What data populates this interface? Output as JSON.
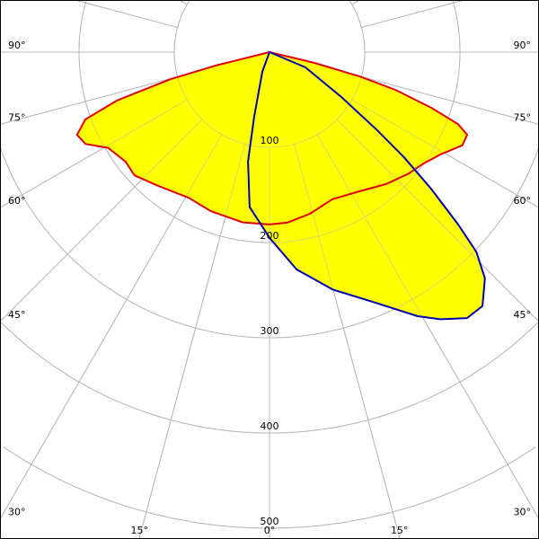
{
  "chart_data": {
    "type": "polar",
    "angle_unit": "deg",
    "angle_labels": [
      {
        "angle": -90,
        "label": "90°"
      },
      {
        "angle": 90,
        "label": "90°"
      },
      {
        "angle": -75,
        "label": "75°"
      },
      {
        "angle": 75,
        "label": "75°"
      },
      {
        "angle": -60,
        "label": "60°"
      },
      {
        "angle": 60,
        "label": "60°"
      },
      {
        "angle": -45,
        "label": "45°"
      },
      {
        "angle": 45,
        "label": "45°"
      },
      {
        "angle": -30,
        "label": "30°"
      },
      {
        "angle": 30,
        "label": "30°"
      },
      {
        "angle": -15,
        "label": "15°"
      },
      {
        "angle": 15,
        "label": "15°"
      },
      {
        "angle": 0,
        "label": "0°"
      }
    ],
    "radial_ticks": [
      100,
      200,
      300,
      400,
      500
    ],
    "grid": true,
    "fill_color": "#ffff00",
    "series": [
      {
        "color": "#e00000",
        "points": [
          [
            -77,
            0
          ],
          [
            -76,
            58
          ],
          [
            -74.7,
            108
          ],
          [
            -72.4,
            168
          ],
          [
            -69.9,
            206
          ],
          [
            -66.7,
            220
          ],
          [
            -63.5,
            216
          ],
          [
            -59.3,
            197
          ],
          [
            -52.7,
            190
          ],
          [
            -47.6,
            192
          ],
          [
            -40,
            183
          ],
          [
            -29,
            175
          ],
          [
            -20.2,
            178
          ],
          [
            -9,
            181
          ],
          [
            0,
            181
          ],
          [
            6,
            180
          ],
          [
            14,
            175
          ],
          [
            23.1,
            168
          ],
          [
            32.8,
            174
          ],
          [
            41.5,
            185
          ],
          [
            48.9,
            194
          ],
          [
            53.7,
            199
          ],
          [
            59,
            209
          ],
          [
            64.2,
            225
          ],
          [
            67.3,
            225
          ],
          [
            69.1,
            212
          ],
          [
            71,
            180
          ],
          [
            73.3,
            138
          ],
          [
            74.9,
            98
          ],
          [
            76.5,
            48.5
          ],
          [
            77,
            0
          ]
        ]
      },
      {
        "color": "#0000b0",
        "points": [
          [
            -20,
            0
          ],
          [
            -20,
            22
          ],
          [
            -13.3,
            70
          ],
          [
            -11.1,
            117
          ],
          [
            -7.3,
            164
          ],
          [
            0,
            195
          ],
          [
            7.1,
            230
          ],
          [
            14.9,
            258
          ],
          [
            23.2,
            287
          ],
          [
            29.3,
            318
          ],
          [
            32.6,
            333
          ],
          [
            36.6,
            348
          ],
          [
            40,
            348
          ],
          [
            43.6,
            328
          ],
          [
            46,
            302
          ],
          [
            47.6,
            268
          ],
          [
            49.8,
            222
          ],
          [
            52,
            179
          ],
          [
            54,
            140
          ],
          [
            58,
            89
          ],
          [
            67,
            41
          ],
          [
            70,
            0
          ]
        ]
      }
    ]
  }
}
